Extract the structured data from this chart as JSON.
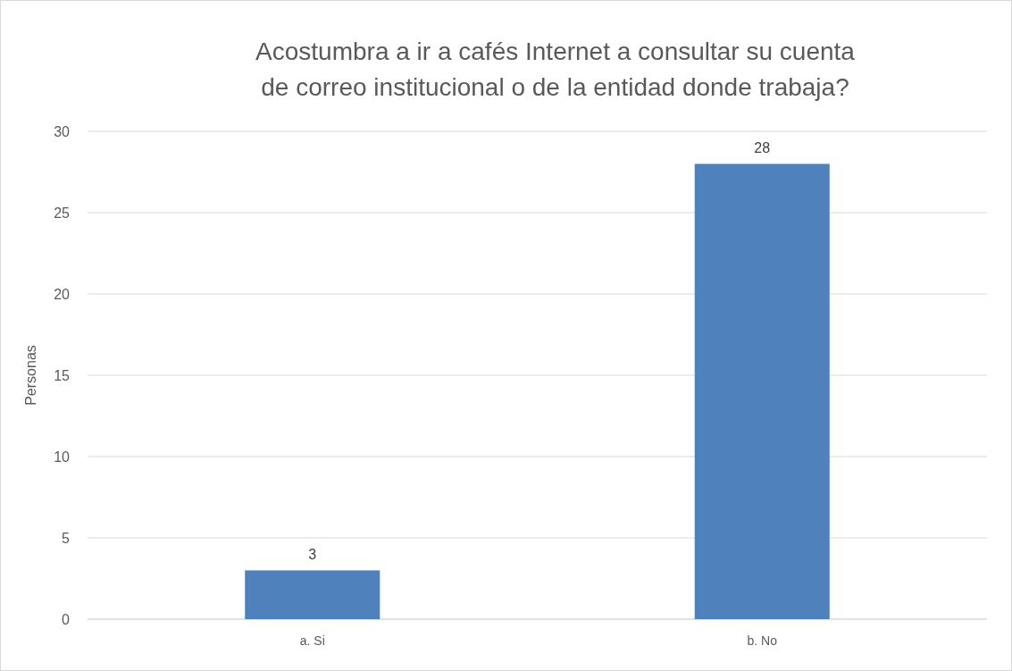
{
  "chart_data": {
    "type": "bar",
    "title": "Acostumbra a ir a cafés Internet a consultar su cuenta de correo institucional o de la entidad donde trabaja?",
    "ylabel": "Personas",
    "categories": [
      "a. Si",
      "b. No"
    ],
    "values": [
      3,
      28
    ],
    "color": "#4f81bd",
    "ylim": [
      0,
      30
    ],
    "yticks": [
      0,
      5,
      10,
      15,
      20,
      25,
      30
    ],
    "grid": "y",
    "data_labels": true
  }
}
